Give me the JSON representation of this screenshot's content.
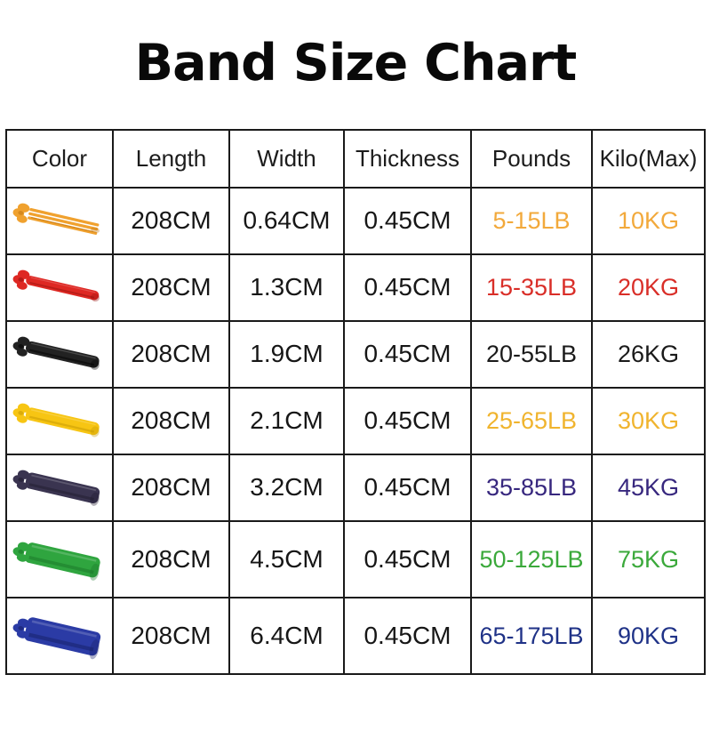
{
  "title": "Band Size Chart",
  "chart_data": {
    "type": "table",
    "title": "Band Size Chart",
    "columns": [
      "Color",
      "Length",
      "Width",
      "Thickness",
      "Pounds",
      "Kilo(Max)"
    ],
    "rows": [
      {
        "band": {
          "name": "orange",
          "color": "#F0A12E",
          "dark": "#C17611",
          "thickness": 7,
          "strands": true
        },
        "length": "208CM",
        "width": "0.64CM",
        "thickness": "0.45CM",
        "pounds": "5-15LB",
        "kilo": "10KG",
        "value_color": "#F2A93B"
      },
      {
        "band": {
          "name": "red",
          "color": "#DE2823",
          "dark": "#94110E",
          "thickness": 11,
          "strands": false
        },
        "length": "208CM",
        "width": "1.3CM",
        "thickness": "0.45CM",
        "pounds": "15-35LB",
        "kilo": "20KG",
        "value_color": "#D92E28"
      },
      {
        "band": {
          "name": "black",
          "color": "#222222",
          "dark": "#000000",
          "thickness": 14,
          "strands": false
        },
        "length": "208CM",
        "width": "1.9CM",
        "thickness": "0.45CM",
        "pounds": "20-55LB",
        "kilo": "26KG",
        "value_color": "#1A1A1A"
      },
      {
        "band": {
          "name": "yellow",
          "color": "#F7C513",
          "dark": "#C49704",
          "thickness": 15,
          "strands": false
        },
        "length": "208CM",
        "width": "2.1CM",
        "thickness": "0.45CM",
        "pounds": "25-65LB",
        "kilo": "30KG",
        "value_color": "#F0B42E"
      },
      {
        "band": {
          "name": "purple",
          "color": "#3A3450",
          "dark": "#1F1B2E",
          "thickness": 19,
          "strands": false
        },
        "length": "208CM",
        "width": "3.2CM",
        "thickness": "0.45CM",
        "pounds": "35-85LB",
        "kilo": "45KG",
        "value_color": "#37277E"
      },
      {
        "band": {
          "name": "green",
          "color": "#2FA53F",
          "dark": "#1A7527",
          "thickness": 24,
          "strands": false
        },
        "length": "208CM",
        "width": "4.5CM",
        "thickness": "0.45CM",
        "pounds": "50-125LB",
        "kilo": "75KG",
        "value_color": "#3BA93B"
      },
      {
        "band": {
          "name": "blue",
          "color": "#2B3BA5",
          "dark": "#161F66",
          "thickness": 28,
          "strands": false
        },
        "length": "208CM",
        "width": "6.4CM",
        "thickness": "0.45CM",
        "pounds": "65-175LB",
        "kilo": "90KG",
        "value_color": "#1F3287"
      }
    ]
  }
}
